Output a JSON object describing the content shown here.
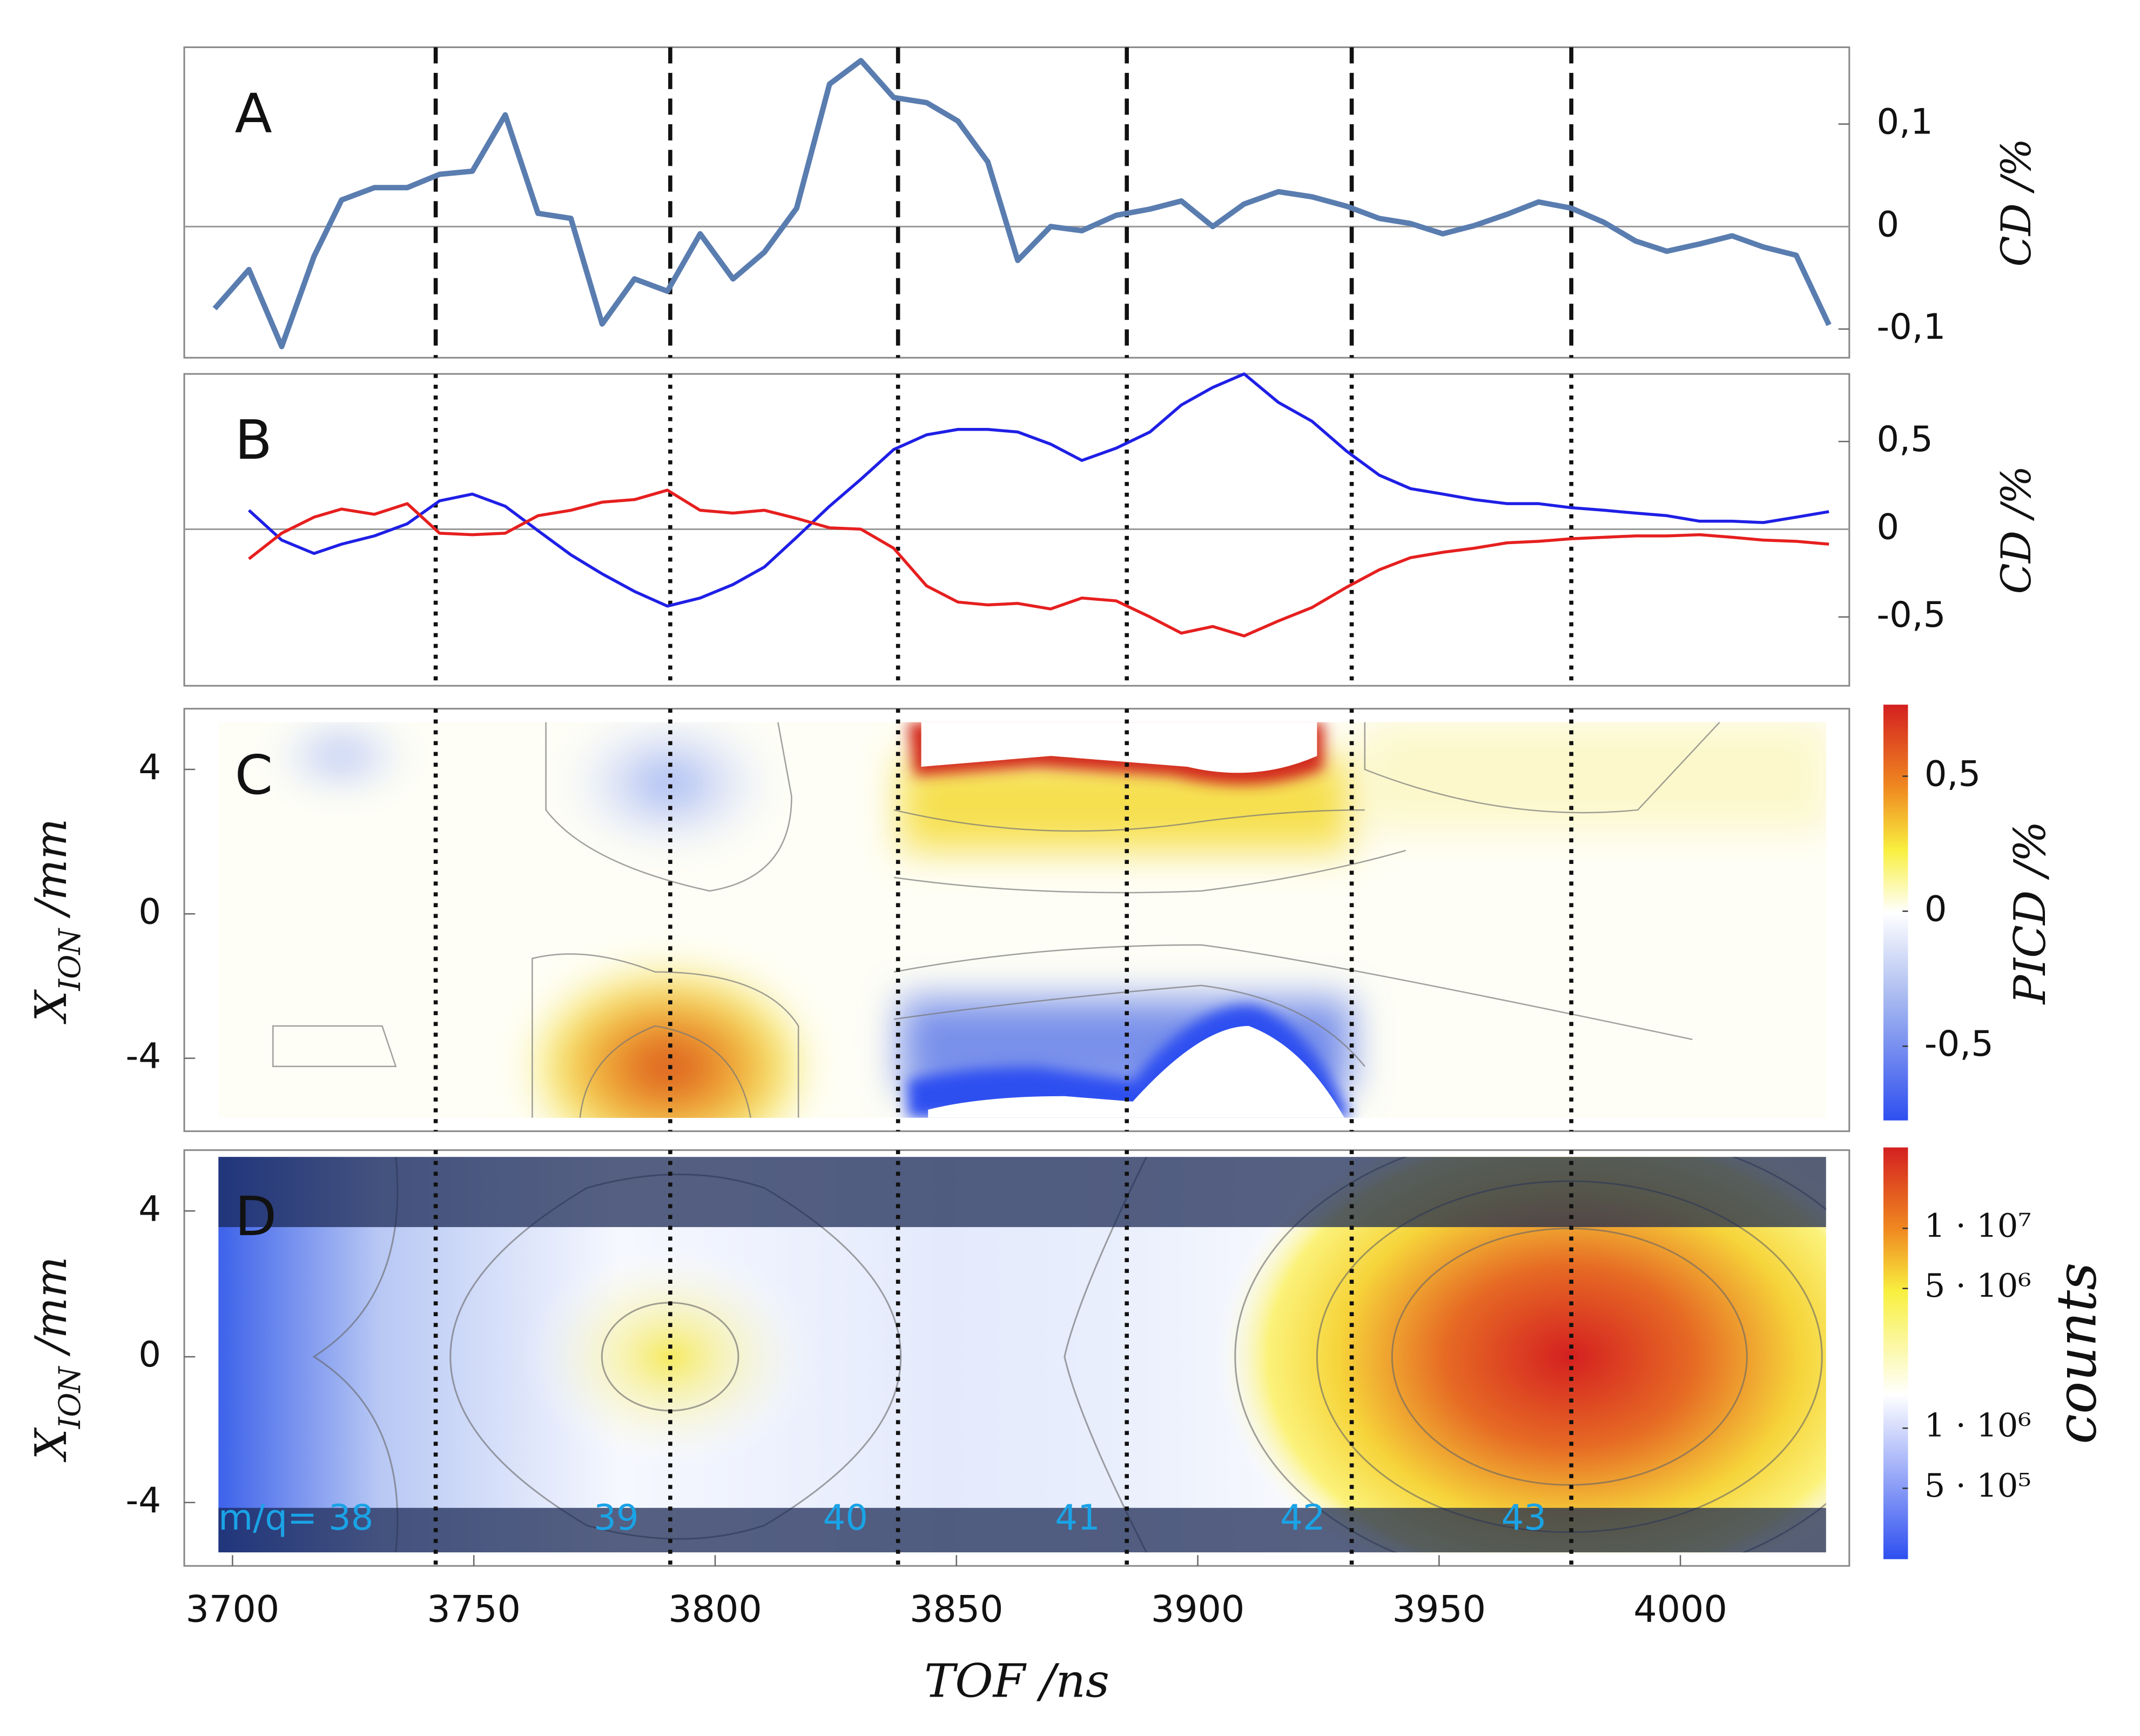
{
  "chart_data": [
    {
      "type": "line",
      "title": "A",
      "ylabel": "CD /%",
      "xlim": [
        3690,
        4035
      ],
      "ylim": [
        -0.128,
        0.175
      ],
      "yticks": [
        {
          "value": -0.1,
          "label": "-0,1"
        },
        0,
        {
          "value": 0.1,
          "label": "0,1"
        }
      ],
      "vlines": [
        3742.1,
        3790.7,
        3837.9,
        3885.3,
        3931.9,
        3977.4
      ],
      "x": [
        3696.3,
        3703.4,
        3710.2,
        3716.9,
        3722.6,
        3729.4,
        3736.2,
        3742.9,
        3749.7,
        3756.5,
        3763.3,
        3770.1,
        3776.6,
        3783.3,
        3790.1,
        3796.9,
        3803.7,
        3810.2,
        3816.9,
        3823.7,
        3830.2,
        3837.0,
        3843.8,
        3850.3,
        3856.5,
        3862.7,
        3869.5,
        3876.0,
        3883.1,
        3890.1,
        3896.6,
        3903.1,
        3909.6,
        3916.7,
        3923.7,
        3930.8,
        3937.6,
        3944.1,
        3950.8,
        3957.3,
        3964.1,
        3970.6,
        3977.4,
        3984.2,
        3990.7,
        3997.2,
        4004.0,
        4010.7,
        4017.2,
        4024.0,
        4030.8
      ],
      "series": [
        {
          "color": "#5a7db0",
          "values": [
            -0.08,
            -0.042,
            -0.117,
            -0.029,
            0.026,
            0.038,
            0.038,
            0.051,
            0.054,
            0.109,
            0.013,
            0.008,
            -0.095,
            -0.051,
            -0.063,
            -0.007,
            -0.051,
            -0.025,
            0.018,
            0.139,
            0.162,
            0.126,
            0.121,
            0.103,
            0.063,
            -0.033,
            0,
            -0.004,
            0.011,
            0.017,
            0.025,
            0,
            0.022,
            0.034,
            0.029,
            0.02,
            0.008,
            0.003,
            -0.007,
            0.001,
            0.012,
            0.024,
            0.018,
            0.004,
            -0.014,
            -0.024,
            -0.017,
            -0.009,
            -0.02,
            -0.028,
            -0.096
          ]
        }
      ]
    },
    {
      "type": "line",
      "title": "B",
      "ylabel": "CD /%",
      "xlim": [
        3690,
        4035
      ],
      "ylim": [
        -0.892,
        0.885
      ],
      "yticks": [
        {
          "value": -0.5,
          "label": "-0,5"
        },
        0,
        {
          "value": 0.5,
          "label": "0,5"
        }
      ],
      "vlines": [
        3742.1,
        3790.7,
        3837.9,
        3885.3,
        3931.9,
        3977.4
      ],
      "x": [
        3703.4,
        3710.2,
        3716.9,
        3722.6,
        3729.4,
        3736.2,
        3742.9,
        3749.7,
        3756.5,
        3763.3,
        3770.1,
        3776.6,
        3783.3,
        3790.1,
        3796.9,
        3803.7,
        3810.2,
        3816.9,
        3823.7,
        3830.2,
        3837.0,
        3843.8,
        3850.3,
        3856.5,
        3862.7,
        3869.5,
        3876.0,
        3883.1,
        3890.1,
        3896.6,
        3903.1,
        3909.6,
        3916.7,
        3923.7,
        3930.8,
        3937.6,
        3944.1,
        3950.8,
        3957.3,
        3964.1,
        3970.6,
        3977.4,
        3984.2,
        3990.7,
        3997.2,
        4004.0,
        4010.7,
        4017.2,
        4024.0,
        4030.8
      ],
      "series": [
        {
          "color": "#1f1fe6",
          "values": [
            0.108,
            -0.062,
            -0.138,
            -0.085,
            -0.038,
            0.031,
            0.162,
            0.2,
            0.131,
            -0.008,
            -0.146,
            -0.254,
            -0.354,
            -0.438,
            -0.392,
            -0.315,
            -0.215,
            -0.046,
            0.131,
            0.285,
            0.454,
            0.538,
            0.569,
            0.569,
            0.554,
            0.485,
            0.392,
            0.462,
            0.554,
            0.708,
            0.808,
            0.885,
            0.723,
            0.615,
            0.446,
            0.308,
            0.231,
            0.2,
            0.169,
            0.146,
            0.146,
            0.123,
            0.108,
            0.092,
            0.077,
            0.046,
            0.046,
            0.038,
            0.069,
            0.1
          ]
        },
        {
          "color": "#e61f1f",
          "values": [
            -0.169,
            -0.023,
            0.069,
            0.115,
            0.085,
            0.146,
            -0.023,
            -0.031,
            -0.023,
            0.077,
            0.108,
            0.154,
            0.169,
            0.223,
            0.108,
            0.092,
            0.108,
            0.062,
            0.008,
            0,
            -0.108,
            -0.323,
            -0.415,
            -0.431,
            -0.423,
            -0.454,
            -0.392,
            -0.408,
            -0.5,
            -0.592,
            -0.554,
            -0.608,
            -0.523,
            -0.446,
            -0.331,
            -0.231,
            -0.162,
            -0.131,
            -0.108,
            -0.077,
            -0.069,
            -0.054,
            -0.046,
            -0.038,
            -0.038,
            -0.031,
            -0.046,
            -0.062,
            -0.069,
            -0.085
          ]
        }
      ]
    },
    {
      "type": "heatmap",
      "title": "C",
      "ylabel": {
        "text": "X",
        "subscript": "ION",
        "unit": " /mm"
      },
      "xlim": [
        3690,
        4035
      ],
      "ylim": [
        -6.02,
        5.68
      ],
      "yticks": [
        -4,
        0,
        4
      ],
      "vlines": [
        3742.1,
        3790.7,
        3837.9,
        3885.3,
        3931.9,
        3977.4
      ],
      "colorbar": {
        "label": "PICD /%",
        "log": false,
        "lim": [
          -0.775,
          0.765
        ],
        "ticks": [
          {
            "value": -0.5,
            "label": "-0,5"
          },
          0,
          {
            "value": 0.5,
            "label": "0,5"
          }
        ]
      }
    },
    {
      "type": "heatmap",
      "title": "D",
      "ylabel": {
        "text": "X",
        "subscript": "ION",
        "unit": " /mm"
      },
      "xlabel": "TOF /ns",
      "xlim": [
        3690,
        4035
      ],
      "ylim": [
        -5.74,
        5.67
      ],
      "yticks": [
        -4,
        0,
        4
      ],
      "xticks": [
        3700,
        3750,
        3800,
        3850,
        3900,
        3950,
        4000
      ],
      "vlines": [
        3742.1,
        3790.7,
        3837.9,
        3885.3,
        3931.9,
        3977.4
      ],
      "annotations": [
        "m/q= 38",
        "39",
        "40",
        "41",
        "42",
        "43"
      ],
      "colorbar": {
        "label": "counts",
        "log": true,
        "lim": [
          221000,
          25400000
        ],
        "ticks": [
          {
            "value": 500000,
            "label": "5 · 10⁵"
          },
          {
            "value": 1000000,
            "label": "1 · 10⁶"
          },
          {
            "value": 5000000,
            "label": "5 · 10⁶"
          },
          {
            "value": 10000000,
            "label": "1 · 10⁷"
          }
        ]
      }
    }
  ]
}
